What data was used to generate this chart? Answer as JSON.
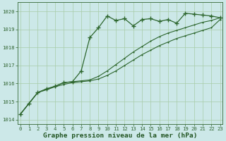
{
  "series": [
    {
      "name": "jagged_plus",
      "x": [
        0,
        1,
        2,
        3,
        4,
        5,
        6,
        7,
        8,
        9,
        10,
        11,
        12,
        13,
        14,
        15,
        16,
        17,
        18,
        19,
        20,
        21,
        22,
        23
      ],
      "y": [
        1014.3,
        1014.9,
        1015.5,
        1015.7,
        1015.85,
        1016.05,
        1016.1,
        1016.7,
        1018.55,
        1019.1,
        1019.75,
        1019.5,
        1019.6,
        1019.2,
        1019.55,
        1019.6,
        1019.45,
        1019.55,
        1019.35,
        1019.9,
        1019.85,
        1019.8,
        1019.75,
        1019.65
      ],
      "color": "#2d662d",
      "marker": "+",
      "linewidth": 0.9,
      "markersize": 4.5,
      "markeredgewidth": 1.0,
      "zorder": 3
    },
    {
      "name": "smooth_upper",
      "x": [
        0,
        1,
        2,
        3,
        4,
        5,
        6,
        7,
        8,
        9,
        10,
        11,
        12,
        13,
        14,
        15,
        16,
        17,
        18,
        19,
        20,
        21,
        22,
        23
      ],
      "y": [
        1014.3,
        1014.9,
        1015.5,
        1015.7,
        1015.85,
        1016.05,
        1016.1,
        1016.15,
        1016.2,
        1016.4,
        1016.7,
        1017.05,
        1017.4,
        1017.75,
        1018.05,
        1018.35,
        1018.6,
        1018.8,
        1018.95,
        1019.1,
        1019.25,
        1019.4,
        1019.5,
        1019.65
      ],
      "color": "#2d662d",
      "marker": ".",
      "linewidth": 0.8,
      "markersize": 2.0,
      "markeredgewidth": 0.5,
      "zorder": 2
    },
    {
      "name": "smooth_lower",
      "x": [
        0,
        1,
        2,
        3,
        4,
        5,
        6,
        7,
        8,
        9,
        10,
        11,
        12,
        13,
        14,
        15,
        16,
        17,
        18,
        19,
        20,
        21,
        22,
        23
      ],
      "y": [
        1014.3,
        1014.9,
        1015.5,
        1015.65,
        1015.82,
        1015.95,
        1016.05,
        1016.1,
        1016.15,
        1016.25,
        1016.45,
        1016.7,
        1017.0,
        1017.3,
        1017.6,
        1017.85,
        1018.1,
        1018.3,
        1018.5,
        1018.65,
        1018.8,
        1018.95,
        1019.1,
        1019.55
      ],
      "color": "#2d662d",
      "marker": ".",
      "linewidth": 0.8,
      "markersize": 2.0,
      "markeredgewidth": 0.5,
      "zorder": 2
    }
  ],
  "xlim": [
    -0.3,
    23.3
  ],
  "ylim": [
    1013.75,
    1020.5
  ],
  "yticks": [
    1014,
    1015,
    1016,
    1017,
    1018,
    1019,
    1020
  ],
  "xticks": [
    0,
    1,
    2,
    3,
    4,
    5,
    6,
    7,
    8,
    9,
    10,
    11,
    12,
    13,
    14,
    15,
    16,
    17,
    18,
    19,
    20,
    21,
    22,
    23
  ],
  "xlabel": "Graphe pression niveau de la mer (hPa)",
  "grid_color": "#a8cca8",
  "bg_color": "#cce8e8",
  "spine_color": "#336633",
  "tick_color": "#336633",
  "label_color": "#225522",
  "xlabel_fontsize": 6.8,
  "tick_fontsize": 5.2,
  "fig_width": 3.2,
  "fig_height": 2.0,
  "dpi": 100
}
